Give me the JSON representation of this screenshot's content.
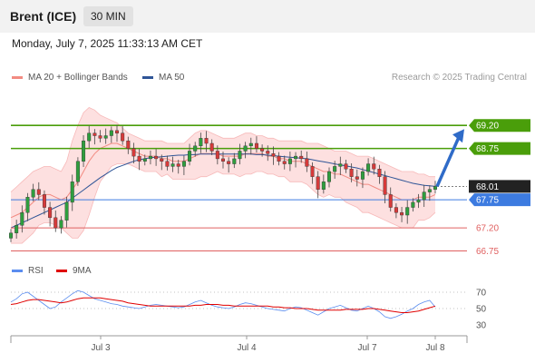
{
  "header": {
    "title": "Brent (ICE)",
    "timeframe": "30 MIN"
  },
  "datetime": "Monday, July 7, 2025 11:33:13 AM CET",
  "legend": [
    {
      "label": "MA 20 + Bollinger Bands",
      "color": "#f28b82"
    },
    {
      "label": "MA 50",
      "color": "#2f5597"
    }
  ],
  "research": "Research © 2025 Trading Central",
  "rsi_legend": [
    {
      "label": "RSI",
      "color": "#5b8def"
    },
    {
      "label": "9MA",
      "color": "#e00000"
    }
  ],
  "chart_data": {
    "type": "line",
    "title": "Brent (ICE)",
    "timeframe": "30 MIN",
    "x_ticks": [
      "Jul 3",
      "Jul 4",
      "Jul 7",
      "Jul 8"
    ],
    "price_levels": [
      {
        "value": 69.2,
        "label": "69.20",
        "kind": "resistance",
        "color": "#4a9e0a"
      },
      {
        "value": 68.75,
        "label": "68.75",
        "kind": "resistance",
        "color": "#4a9e0a"
      },
      {
        "value": 68.01,
        "label": "68.01",
        "kind": "last",
        "color": "#333333"
      },
      {
        "value": 67.75,
        "label": "67.75",
        "kind": "pivot",
        "color": "#3d7be0"
      },
      {
        "value": 67.2,
        "label": "67.20",
        "kind": "support",
        "color": "#e06060"
      },
      {
        "value": 66.75,
        "label": "66.75",
        "kind": "support",
        "color": "#e06060"
      }
    ],
    "price_close": [
      67.1,
      67.25,
      67.5,
      67.8,
      67.95,
      67.85,
      67.6,
      67.4,
      67.2,
      67.35,
      67.7,
      68.1,
      68.5,
      68.9,
      69.05,
      69.0,
      68.95,
      69.0,
      69.1,
      69.05,
      68.9,
      68.75,
      68.6,
      68.5,
      68.55,
      68.6,
      68.55,
      68.5,
      68.4,
      68.45,
      68.4,
      68.5,
      68.7,
      68.8,
      68.95,
      68.85,
      68.7,
      68.55,
      68.5,
      68.45,
      68.55,
      68.7,
      68.8,
      68.85,
      68.75,
      68.7,
      68.65,
      68.6,
      68.5,
      68.45,
      68.55,
      68.6,
      68.55,
      68.4,
      68.2,
      67.95,
      68.1,
      68.3,
      68.4,
      68.45,
      68.35,
      68.2,
      68.15,
      68.3,
      68.45,
      68.35,
      68.2,
      67.85,
      67.6,
      67.5,
      67.45,
      67.6,
      67.7,
      67.75,
      67.9,
      67.95,
      68.01
    ],
    "ma20": [
      67.4,
      67.45,
      67.5,
      67.6,
      67.7,
      67.8,
      67.85,
      67.85,
      67.8,
      67.75,
      67.8,
      67.95,
      68.1,
      68.3,
      68.5,
      68.65,
      68.75,
      68.8,
      68.85,
      68.85,
      68.8,
      68.75,
      68.7,
      68.65,
      68.6,
      68.6,
      68.6,
      68.55,
      68.55,
      68.5,
      68.5,
      68.5,
      68.55,
      68.6,
      68.65,
      68.65,
      68.65,
      68.65,
      68.6,
      68.6,
      68.6,
      68.6,
      68.65,
      68.65,
      68.65,
      68.65,
      68.6,
      68.6,
      68.55,
      68.55,
      68.5,
      68.5,
      68.5,
      68.45,
      68.4,
      68.35,
      68.3,
      68.3,
      68.25,
      68.25,
      68.2,
      68.15,
      68.1,
      68.05,
      68.05,
      68.0,
      67.95,
      67.9,
      67.85,
      67.8,
      67.75,
      67.75,
      67.75,
      67.8,
      67.8,
      67.8,
      67.85
    ],
    "ma50": [
      67.2,
      67.25,
      67.3,
      67.35,
      67.4,
      67.45,
      67.5,
      67.55,
      67.6,
      67.65,
      67.7,
      67.78,
      67.86,
      67.94,
      68.02,
      68.1,
      68.18,
      68.25,
      68.32,
      68.38,
      68.42,
      68.46,
      68.5,
      68.53,
      68.55,
      68.57,
      68.58,
      68.59,
      68.6,
      68.61,
      68.62,
      68.62,
      68.63,
      68.63,
      68.64,
      68.64,
      68.64,
      68.64,
      68.64,
      68.64,
      68.64,
      68.64,
      68.64,
      68.64,
      68.63,
      68.63,
      68.62,
      68.61,
      68.6,
      68.59,
      68.58,
      68.57,
      68.56,
      68.55,
      68.53,
      68.51,
      68.49,
      68.47,
      68.45,
      68.43,
      68.41,
      68.39,
      68.37,
      68.34,
      68.31,
      68.28,
      68.25,
      68.22,
      68.19,
      68.16,
      68.13,
      68.1,
      68.07,
      68.05,
      68.03,
      68.02,
      68.01
    ],
    "bb_upper": [
      67.9,
      68.0,
      68.1,
      68.2,
      68.3,
      68.35,
      68.4,
      68.4,
      68.35,
      68.3,
      68.5,
      68.9,
      69.2,
      69.45,
      69.55,
      69.5,
      69.4,
      69.35,
      69.3,
      69.25,
      69.15,
      69.05,
      69.0,
      68.95,
      68.9,
      68.9,
      68.9,
      68.9,
      68.85,
      68.85,
      68.85,
      68.85,
      68.95,
      69.05,
      69.1,
      69.1,
      69.05,
      69.0,
      68.95,
      68.95,
      68.95,
      69.0,
      69.05,
      69.05,
      69.0,
      69.0,
      68.95,
      68.95,
      68.9,
      68.9,
      68.9,
      68.9,
      68.9,
      68.85,
      68.85,
      68.85,
      68.8,
      68.75,
      68.7,
      68.7,
      68.7,
      68.65,
      68.6,
      68.6,
      68.6,
      68.55,
      68.5,
      68.45,
      68.4,
      68.35,
      68.3,
      68.3,
      68.3,
      68.25,
      68.25,
      68.2,
      68.2
    ],
    "bb_lower": [
      66.9,
      66.9,
      66.9,
      67.0,
      67.1,
      67.25,
      67.3,
      67.3,
      67.25,
      67.2,
      67.1,
      67.0,
      67.0,
      67.15,
      67.45,
      67.8,
      68.1,
      68.25,
      68.4,
      68.45,
      68.45,
      68.45,
      68.4,
      68.35,
      68.3,
      68.3,
      68.3,
      68.2,
      68.25,
      68.15,
      68.15,
      68.15,
      68.15,
      68.15,
      68.2,
      68.2,
      68.25,
      68.3,
      68.25,
      68.25,
      68.25,
      68.2,
      68.25,
      68.25,
      68.3,
      68.3,
      68.25,
      68.25,
      68.2,
      68.2,
      68.1,
      68.1,
      68.1,
      68.05,
      67.95,
      67.85,
      67.8,
      67.85,
      67.8,
      67.8,
      67.7,
      67.65,
      67.6,
      67.5,
      67.5,
      67.45,
      67.4,
      67.35,
      67.3,
      67.25,
      67.2,
      67.2,
      67.2,
      67.35,
      67.35,
      67.4,
      67.5
    ],
    "rsi": {
      "levels": [
        70,
        50,
        30
      ],
      "ylim": [
        20,
        80
      ]
    },
    "rsi_values": [
      58,
      62,
      68,
      70,
      65,
      60,
      55,
      50,
      52,
      58,
      63,
      68,
      72,
      70,
      66,
      62,
      60,
      58,
      56,
      55,
      53,
      52,
      51,
      50,
      52,
      54,
      55,
      54,
      53,
      52,
      51,
      52,
      55,
      58,
      60,
      57,
      54,
      52,
      51,
      50,
      52,
      55,
      57,
      56,
      54,
      52,
      50,
      49,
      48,
      47,
      50,
      52,
      51,
      48,
      45,
      42,
      46,
      50,
      52,
      54,
      51,
      48,
      47,
      50,
      53,
      50,
      46,
      40,
      38,
      40,
      43,
      47,
      50,
      55,
      58,
      60,
      52
    ],
    "rsi_ma9": [
      55,
      56,
      58,
      60,
      61,
      61,
      60,
      59,
      58,
      57,
      58,
      60,
      62,
      63,
      63,
      63,
      63,
      62,
      61,
      60,
      59,
      57,
      56,
      55,
      54,
      53,
      53,
      53,
      53,
      53,
      53,
      53,
      53,
      54,
      54,
      55,
      55,
      55,
      54,
      54,
      53,
      53,
      53,
      53,
      53,
      53,
      53,
      52,
      52,
      51,
      51,
      50,
      50,
      50,
      49,
      48,
      48,
      48,
      48,
      48,
      49,
      49,
      49,
      49,
      50,
      50,
      49,
      48,
      47,
      46,
      45,
      45,
      46,
      47,
      49,
      51,
      53
    ]
  }
}
